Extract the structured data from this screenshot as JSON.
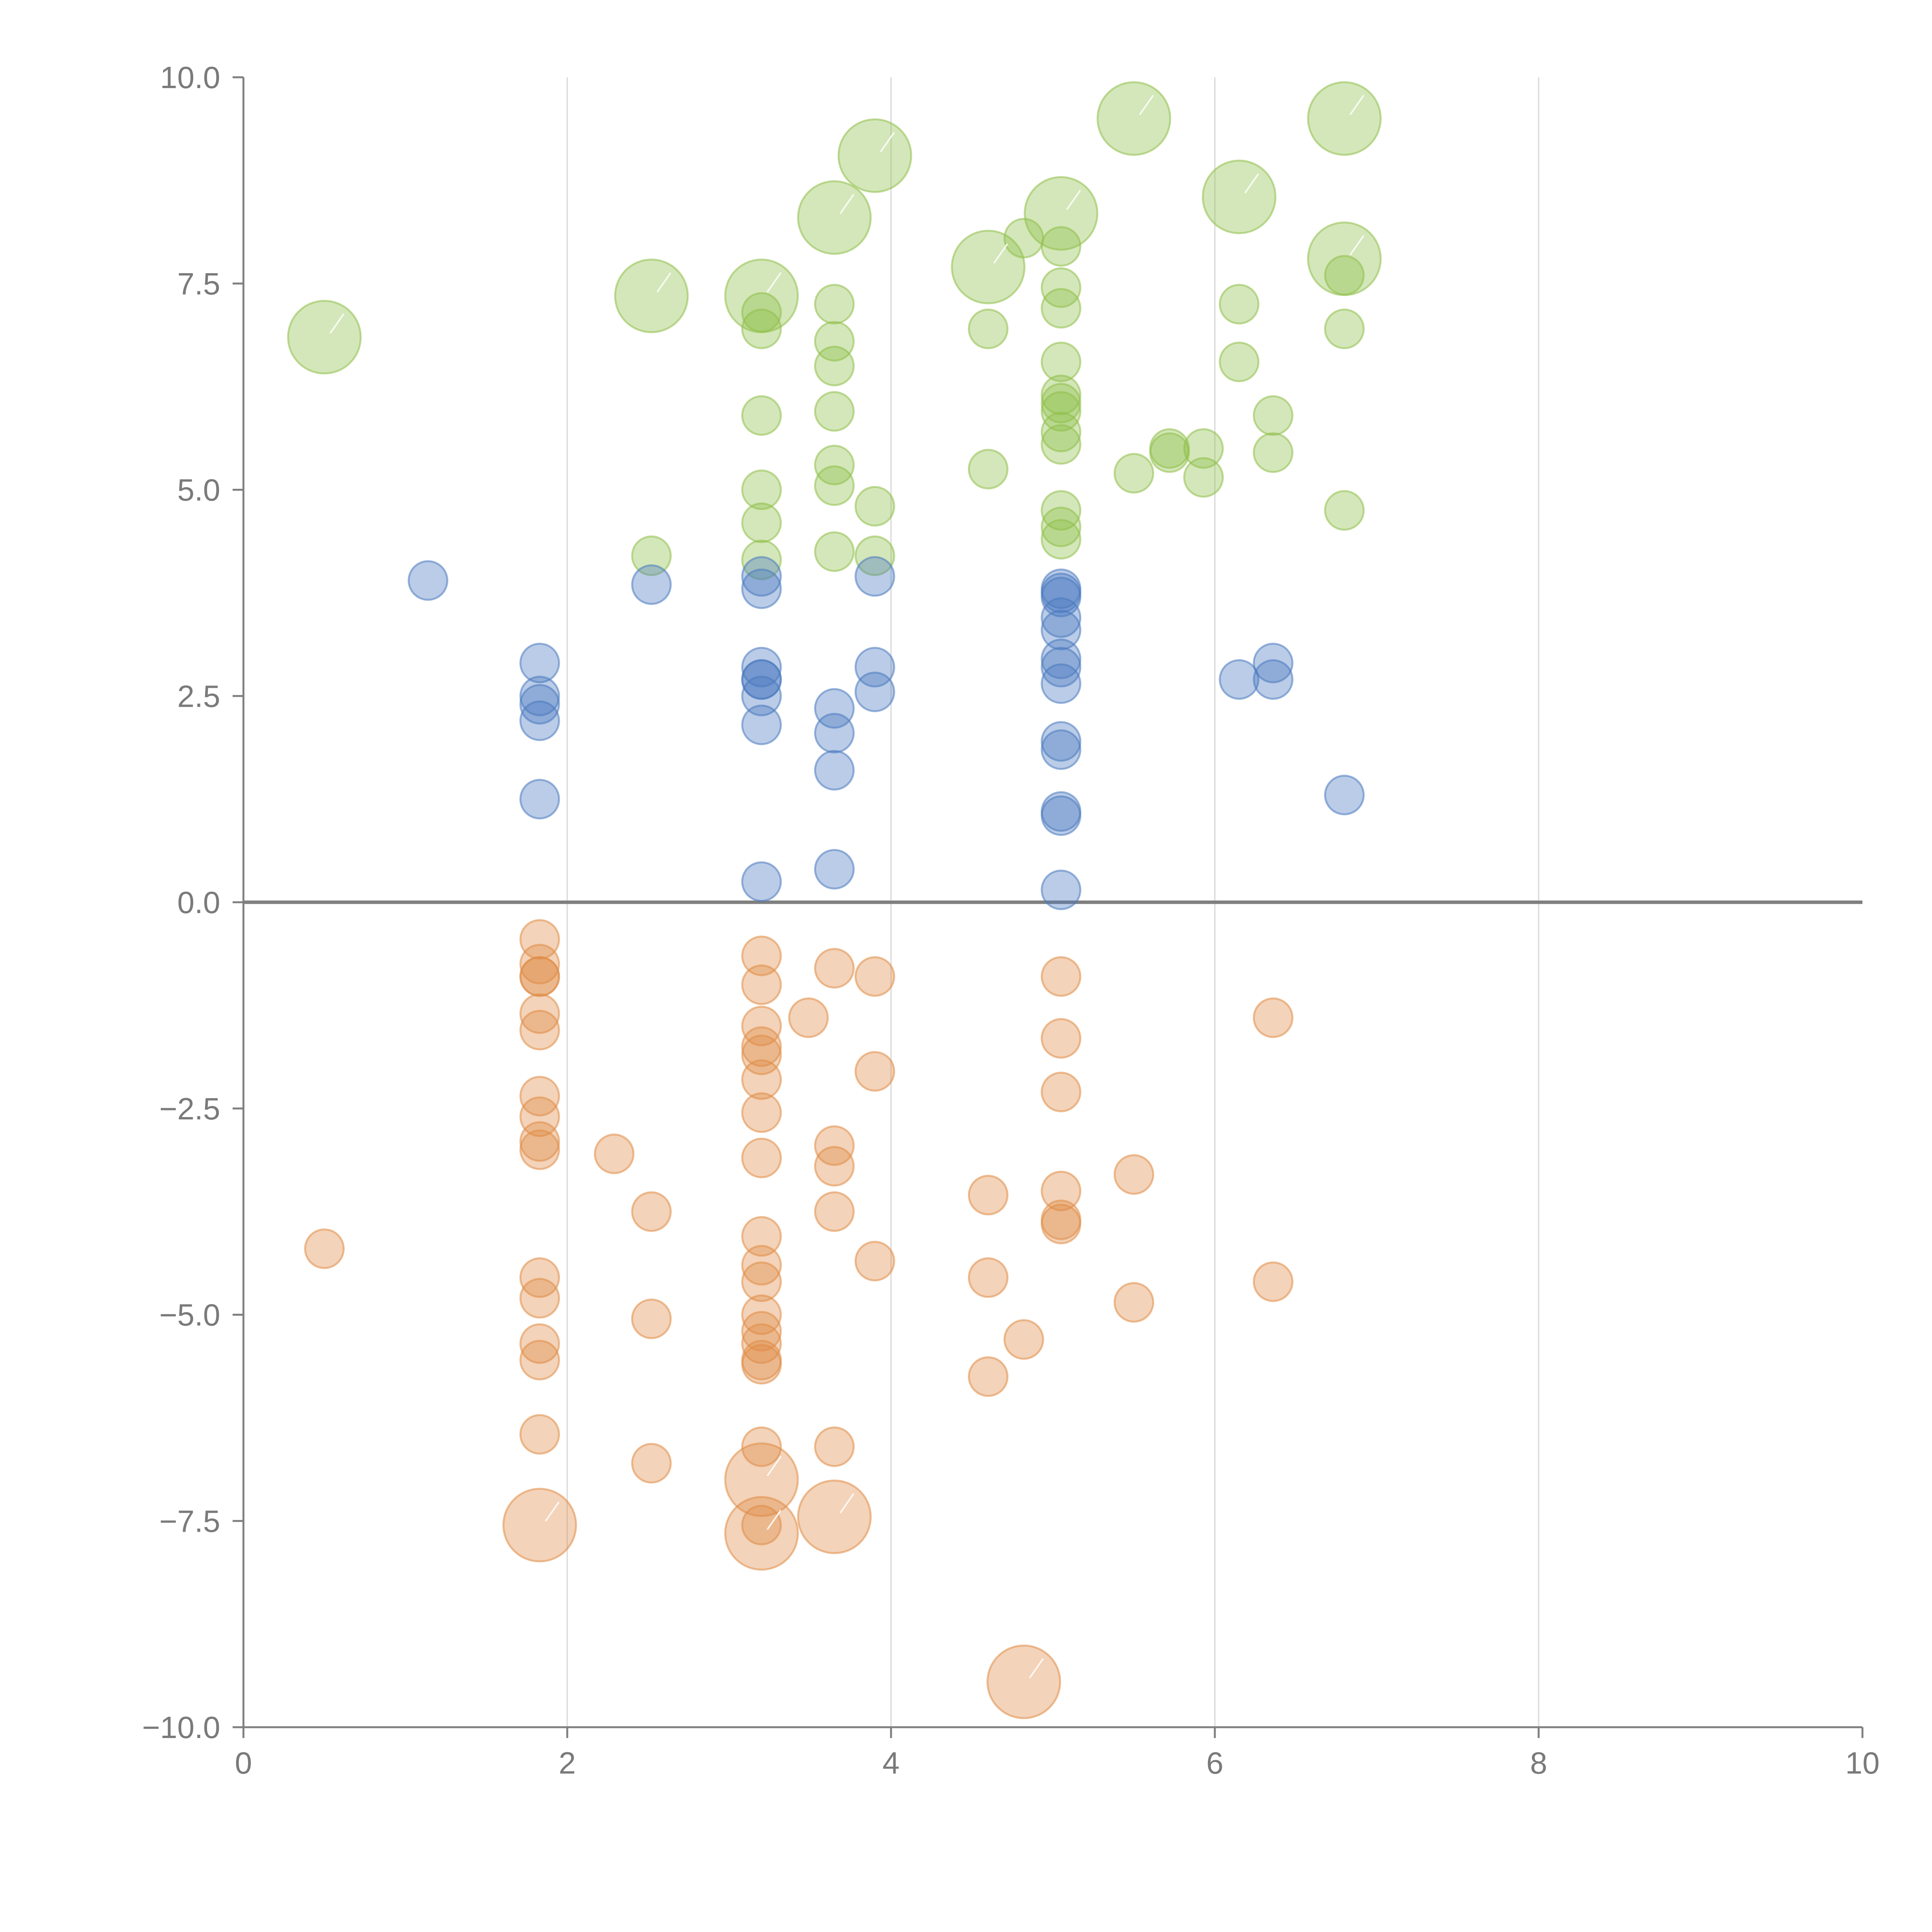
{
  "chart_data": {
    "type": "scatter",
    "title": "",
    "xlabel": "",
    "ylabel": "",
    "xlim": [
      0,
      10
    ],
    "ylim": [
      -10,
      10
    ],
    "x_ticks": [
      0,
      2,
      4,
      6,
      8,
      10
    ],
    "x_tick_labels": [
      "0",
      "2",
      "4",
      "6",
      "8",
      "10"
    ],
    "y_ticks": [
      10,
      7.5,
      5,
      2.5,
      0,
      -2.5,
      -5,
      -7.5,
      -10
    ],
    "y_tick_labels": [
      "10.0",
      "7.5",
      "5.0",
      "2.5",
      "0.0",
      "−2.5",
      "−5.0",
      "−7.5",
      "−10.0"
    ],
    "vertical_gridlines": true,
    "zero_line": true,
    "colors": {
      "blue": "#4a7abf",
      "green": "#8fbf4a",
      "orange": "#e08c46"
    },
    "series": [
      {
        "name": "green",
        "color": "#8fbf4a",
        "points": [
          [
            0.5,
            6.85,
            2
          ],
          [
            2.52,
            7.35,
            2
          ],
          [
            3.2,
            7.35,
            2
          ],
          [
            3.65,
            8.3,
            2
          ],
          [
            3.9,
            9.05,
            2
          ],
          [
            4.6,
            7.7,
            2
          ],
          [
            5.05,
            8.35,
            2
          ],
          [
            5.5,
            9.5,
            2
          ],
          [
            6.15,
            8.55,
            2
          ],
          [
            6.8,
            9.5,
            2
          ],
          [
            6.8,
            7.8,
            2
          ],
          [
            4.82,
            8.05,
            1
          ],
          [
            5.05,
            7.95,
            1
          ],
          [
            5.05,
            7.45,
            1
          ],
          [
            5.05,
            7.2,
            1
          ],
          [
            5.05,
            6.55,
            1
          ],
          [
            5.05,
            6.15,
            1
          ],
          [
            5.05,
            6.05,
            1
          ],
          [
            5.05,
            5.95,
            1
          ],
          [
            5.05,
            5.7,
            1
          ],
          [
            5.05,
            5.55,
            1
          ],
          [
            5.05,
            4.75,
            1
          ],
          [
            5.05,
            4.55,
            1
          ],
          [
            5.05,
            4.4,
            1
          ],
          [
            3.2,
            7.15,
            1
          ],
          [
            3.2,
            6.95,
            1
          ],
          [
            3.2,
            5.9,
            1
          ],
          [
            3.2,
            5.0,
            1
          ],
          [
            3.2,
            4.6,
            1
          ],
          [
            3.2,
            4.15,
            1
          ],
          [
            3.65,
            7.25,
            1
          ],
          [
            3.65,
            6.8,
            1
          ],
          [
            3.65,
            6.5,
            1
          ],
          [
            3.65,
            5.95,
            1
          ],
          [
            3.65,
            5.3,
            1
          ],
          [
            3.65,
            5.05,
            1
          ],
          [
            3.65,
            4.25,
            1
          ],
          [
            3.9,
            4.8,
            1
          ],
          [
            3.9,
            4.2,
            1
          ],
          [
            4.6,
            6.95,
            1
          ],
          [
            4.6,
            5.25,
            1
          ],
          [
            2.52,
            4.2,
            1
          ],
          [
            5.5,
            5.2,
            1
          ],
          [
            5.72,
            5.5,
            1
          ],
          [
            5.72,
            5.45,
            1
          ],
          [
            5.93,
            5.5,
            1
          ],
          [
            5.93,
            5.15,
            1
          ],
          [
            6.15,
            7.25,
            1
          ],
          [
            6.15,
            6.55,
            1
          ],
          [
            6.36,
            5.9,
            1
          ],
          [
            6.36,
            5.45,
            1
          ],
          [
            6.8,
            7.6,
            1
          ],
          [
            6.8,
            6.95,
            1
          ],
          [
            6.8,
            4.75,
            1
          ]
        ]
      },
      {
        "name": "blue",
        "color": "#4a7abf",
        "points": [
          [
            1.14,
            3.9,
            1
          ],
          [
            1.83,
            2.9,
            1
          ],
          [
            1.83,
            2.5,
            1
          ],
          [
            1.83,
            2.4,
            1
          ],
          [
            1.83,
            2.2,
            1
          ],
          [
            1.83,
            1.25,
            1
          ],
          [
            2.52,
            3.85,
            1
          ],
          [
            3.2,
            3.95,
            1
          ],
          [
            3.2,
            3.8,
            1
          ],
          [
            3.2,
            2.85,
            1
          ],
          [
            3.2,
            2.7,
            1
          ],
          [
            3.2,
            2.7,
            1
          ],
          [
            3.2,
            2.5,
            1
          ],
          [
            3.2,
            2.15,
            1
          ],
          [
            3.2,
            0.25,
            1
          ],
          [
            3.65,
            2.35,
            1
          ],
          [
            3.65,
            2.05,
            1
          ],
          [
            3.65,
            1.6,
            1
          ],
          [
            3.65,
            0.4,
            1
          ],
          [
            3.9,
            3.95,
            1
          ],
          [
            3.9,
            2.85,
            1
          ],
          [
            3.9,
            2.55,
            1
          ],
          [
            5.05,
            3.8,
            1
          ],
          [
            5.05,
            3.75,
            1
          ],
          [
            5.05,
            3.7,
            1
          ],
          [
            5.05,
            3.45,
            1
          ],
          [
            5.05,
            3.3,
            1
          ],
          [
            5.05,
            2.95,
            1
          ],
          [
            5.05,
            2.85,
            1
          ],
          [
            5.05,
            2.65,
            1
          ],
          [
            5.05,
            1.95,
            1
          ],
          [
            5.05,
            1.85,
            1
          ],
          [
            5.05,
            1.1,
            1
          ],
          [
            5.05,
            1.05,
            1
          ],
          [
            5.05,
            0.15,
            1
          ],
          [
            6.15,
            2.7,
            1
          ],
          [
            6.36,
            2.9,
            1
          ],
          [
            6.36,
            2.7,
            1
          ],
          [
            6.8,
            1.3,
            1
          ]
        ]
      },
      {
        "name": "orange",
        "color": "#e08c46",
        "points": [
          [
            0.5,
            -4.2,
            1
          ],
          [
            1.83,
            -0.45,
            1
          ],
          [
            1.83,
            -0.75,
            1
          ],
          [
            1.83,
            -0.9,
            1
          ],
          [
            1.83,
            -0.9,
            1
          ],
          [
            1.83,
            -1.35,
            1
          ],
          [
            1.83,
            -1.55,
            1
          ],
          [
            1.83,
            -2.35,
            1
          ],
          [
            1.83,
            -2.6,
            1
          ],
          [
            1.83,
            -2.9,
            1
          ],
          [
            1.83,
            -3.0,
            1
          ],
          [
            1.83,
            -4.55,
            1
          ],
          [
            1.83,
            -4.8,
            1
          ],
          [
            1.83,
            -5.35,
            1
          ],
          [
            1.83,
            -5.55,
            1
          ],
          [
            1.83,
            -6.45,
            1
          ],
          [
            1.83,
            -7.55,
            2
          ],
          [
            2.29,
            -3.05,
            1
          ],
          [
            2.52,
            -3.75,
            1
          ],
          [
            2.52,
            -5.05,
            1
          ],
          [
            2.52,
            -6.8,
            1
          ],
          [
            3.2,
            -0.65,
            1
          ],
          [
            3.2,
            -1.0,
            1
          ],
          [
            3.2,
            -1.5,
            1
          ],
          [
            3.2,
            -1.75,
            1
          ],
          [
            3.2,
            -1.85,
            1
          ],
          [
            3.2,
            -2.15,
            1
          ],
          [
            3.2,
            -2.55,
            1
          ],
          [
            3.2,
            -3.1,
            1
          ],
          [
            3.2,
            -4.05,
            1
          ],
          [
            3.2,
            -4.4,
            1
          ],
          [
            3.2,
            -4.6,
            1
          ],
          [
            3.2,
            -5.0,
            1
          ],
          [
            3.2,
            -5.2,
            1
          ],
          [
            3.2,
            -5.35,
            1
          ],
          [
            3.2,
            -5.55,
            1
          ],
          [
            3.2,
            -5.6,
            1
          ],
          [
            3.2,
            -6.6,
            1
          ],
          [
            3.2,
            -7.0,
            2
          ],
          [
            3.2,
            -7.55,
            1
          ],
          [
            3.2,
            -7.65,
            2
          ],
          [
            3.49,
            -1.4,
            1
          ],
          [
            3.65,
            -0.8,
            1
          ],
          [
            3.65,
            -2.95,
            1
          ],
          [
            3.65,
            -3.2,
            1
          ],
          [
            3.65,
            -3.75,
            1
          ],
          [
            3.65,
            -6.6,
            1
          ],
          [
            3.65,
            -7.45,
            2
          ],
          [
            3.9,
            -0.9,
            1
          ],
          [
            3.9,
            -2.05,
            1
          ],
          [
            3.9,
            -4.35,
            1
          ],
          [
            4.6,
            -3.55,
            1
          ],
          [
            4.6,
            -4.55,
            1
          ],
          [
            4.6,
            -5.75,
            1
          ],
          [
            4.82,
            -5.3,
            1
          ],
          [
            4.82,
            -9.45,
            2
          ],
          [
            5.05,
            -0.9,
            1
          ],
          [
            5.05,
            -1.65,
            1
          ],
          [
            5.05,
            -2.3,
            1
          ],
          [
            5.05,
            -3.5,
            1
          ],
          [
            5.05,
            -3.85,
            1
          ],
          [
            5.05,
            -3.9,
            1
          ],
          [
            5.5,
            -3.3,
            1
          ],
          [
            5.5,
            -4.85,
            1
          ],
          [
            6.36,
            -1.4,
            1
          ],
          [
            6.36,
            -4.6,
            1
          ]
        ]
      }
    ]
  }
}
